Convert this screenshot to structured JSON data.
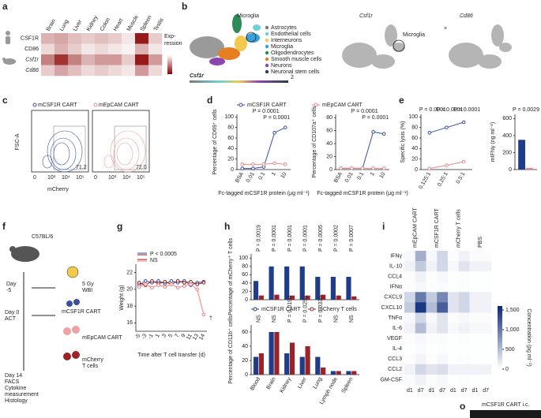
{
  "figure": {
    "letters": [
      "a",
      "b",
      "c",
      "d",
      "e",
      "f",
      "g",
      "h",
      "i",
      "o"
    ],
    "a": {
      "legend": [
        "Exp-",
        "ression"
      ]
    },
    "b": {
      "microglia": "Microglia",
      "gene1": "Csf1r",
      "scale_max": "2",
      "title2": "Csf1r",
      "microglia2": "Microglia",
      "title3": "Cd86",
      "legend": [
        {
          "name": "Astrocytes",
          "color": "#7a7a7a"
        },
        {
          "name": "Endothelial cells",
          "color": "#6fd0d9"
        },
        {
          "name": "Interneurons",
          "color": "#f2c94c"
        },
        {
          "name": "Microglia",
          "color": "#3aa0d8"
        },
        {
          "name": "Oligodendrocytes",
          "color": "#2e8b57"
        },
        {
          "name": "Smooth muscle cells",
          "color": "#e67e22"
        },
        {
          "name": "Neurons",
          "color": "#8e44ad"
        },
        {
          "name": "Neuronal stem cells",
          "color": "#2c3e50"
        }
      ]
    },
    "c": {
      "left_title": "mCSF1R CART",
      "right_title": "mEpCAM CART",
      "y_label": "FSC-A",
      "x_label": "mCherry",
      "left_gate": "71.2",
      "right_gate": "72.0",
      "xticks": [
        "0",
        "10³",
        "10⁴",
        "10⁵"
      ]
    },
    "f": {
      "strain": "C57BL/6",
      "day_m5": "Day",
      "day_m5b": "-5",
      "wbi": [
        "5 Gy",
        "WBI"
      ],
      "cart1": "mCSF1R CART",
      "day0": [
        "Day 0",
        "ACT"
      ],
      "cart2": "mEpCAM CART",
      "cart3": [
        "mCherry",
        "T cells"
      ],
      "day14": [
        "Day 14",
        "FACS",
        "Cytokine",
        "measurement",
        "Histology"
      ]
    },
    "o": {
      "title": "mCSF1R CART i.c."
    }
  },
  "chart_data": [
    {
      "type": "heatmap",
      "categories": [
        "Brain",
        "Lung",
        "Liver",
        "Kidney",
        "Colon",
        "Heart",
        "Muscle",
        "Spleen",
        "Testis"
      ],
      "rows": [
        "CSF1R",
        "CD86",
        "Csf1r",
        "Cd86"
      ],
      "values": [
        [
          0.3,
          0.35,
          0.25,
          0.2,
          0.25,
          0.2,
          0.1,
          0.9,
          0.2
        ],
        [
          0.15,
          0.3,
          0.2,
          0.1,
          0.15,
          0.1,
          0.05,
          0.3,
          0.1
        ],
        [
          0.5,
          0.8,
          0.5,
          0.3,
          0.4,
          0.4,
          0.2,
          0.9,
          0.4
        ],
        [
          0.2,
          0.35,
          0.25,
          0.15,
          0.2,
          0.15,
          0.1,
          0.4,
          0.15
        ]
      ],
      "zlim": [
        0,
        1
      ],
      "cmap": [
        "#ffffff",
        "#8b0000"
      ]
    },
    {
      "type": "line",
      "categories": [
        "BSA",
        "0.01",
        "0.1",
        "1",
        "10"
      ],
      "y_label": "Percentage of CD69⁺ cells",
      "x_label": "Fc-tagged mCSF1R protein (μg ml⁻¹)",
      "ylim": [
        0,
        105
      ],
      "yticks": [
        0,
        20,
        40,
        60,
        80,
        100
      ],
      "series": [
        {
          "name": "mCSF1R CART",
          "color": "#3a4fa0",
          "values": [
            2,
            2,
            5,
            70,
            80
          ]
        },
        {
          "name": "mEpCAM CART",
          "color": "#e88a8a",
          "values": [
            10,
            10,
            10,
            12,
            10
          ]
        }
      ],
      "annotations": [
        "P = 0.0001",
        "P = 0.0001"
      ]
    },
    {
      "type": "line",
      "categories": [
        "BSA",
        "0.01",
        "0.1",
        "1",
        "10"
      ],
      "y_label": "Percentage of CD107a⁺ cells",
      "x_label": "Fc-tagged mCSF1R protein (μg ml⁻¹)",
      "ylim": [
        0,
        85
      ],
      "yticks": [
        0,
        20,
        40,
        60,
        80
      ],
      "series": [
        {
          "color": "#3a4fa0",
          "values": [
            2,
            2,
            2,
            58,
            55
          ]
        },
        {
          "color": "#e88a8a",
          "values": [
            2,
            2,
            2,
            2,
            2
          ]
        }
      ],
      "annotations": [
        "P = 0.0001",
        "P = 0.0001"
      ]
    },
    {
      "type": "line",
      "categories": [
        "0.125:1",
        "0.25:1",
        "0.5:1"
      ],
      "y_label": "Specific lysis (%)",
      "ylim": [
        0,
        105
      ],
      "yticks": [
        0,
        20,
        40,
        60,
        80,
        100
      ],
      "series": [
        {
          "color": "#3a4fa0",
          "values": [
            70,
            80,
            90
          ]
        },
        {
          "color": "#e88a8a",
          "values": [
            2,
            8,
            15
          ]
        }
      ],
      "annotations": [
        "P = 0.0001",
        "P = 0.0001",
        "P = 0.0001"
      ]
    },
    {
      "type": "bar",
      "y_label": "mIFNγ (ng ml⁻¹)",
      "ylim": [
        0,
        650
      ],
      "yticks": [
        0,
        200,
        400,
        600
      ],
      "series": [
        {
          "color": "#1f3c88",
          "values": [
            350
          ]
        },
        {
          "color": "#e88a8a",
          "values": [
            20
          ]
        }
      ],
      "annotations": [
        "P = 0.0029"
      ]
    },
    {
      "type": "line",
      "categories": [
        "-5",
        "-3",
        "-1",
        "1",
        "3",
        "5",
        "7",
        "9",
        "11",
        "13",
        "14"
      ],
      "y_label": "Weight (g)",
      "x_label": "Time after T cell transfer (d)",
      "ylim": [
        15,
        23
      ],
      "yticks": [
        16,
        18,
        20,
        22
      ],
      "series": [
        {
          "color": "#3a4fa0",
          "values": [
            20.5,
            21,
            20.8,
            21,
            20.7,
            21,
            20.8,
            21,
            20.5,
            20.8,
            20.9
          ]
        },
        {
          "color": "#8b1a1a",
          "values": [
            20.8,
            20.5,
            21,
            20.7,
            20.9,
            20.6,
            21,
            20.8,
            20.9,
            20.6,
            20.8
          ]
        },
        {
          "color": "#f08080",
          "values": [
            20.3,
            20.6,
            20.2,
            20.5,
            20.3,
            20.6,
            20.2,
            20.4,
            20.6,
            20,
            17
          ]
        }
      ],
      "annotations": [
        "P < 0.0005",
        "NS",
        "†"
      ]
    },
    {
      "type": "bar",
      "y_label": "Percentage of mCherry⁺ T cells",
      "ylim": [
        0,
        110
      ],
      "yticks": [
        0,
        20,
        40,
        60,
        80,
        100
      ],
      "series": [
        {
          "name": "mCSF1R CART",
          "color": "#1f3c88",
          "values": [
            45,
            80,
            80,
            80,
            55,
            55,
            55
          ]
        },
        {
          "name": "mCherry T cells",
          "color": "#9b2226",
          "values": [
            10,
            12,
            10,
            10,
            12,
            10,
            8
          ]
        }
      ],
      "annotations": [
        "P = 0.0019",
        "P = 0.0001",
        "P = 0.0001",
        "P = 0.0001",
        "P = 0.0005",
        "P = 0.0002",
        "P = 0.0007"
      ]
    },
    {
      "type": "bar",
      "categories": [
        "Blood",
        "Brain",
        "Kidney",
        "Liver",
        "Lung",
        "Lymph node",
        "Spleen"
      ],
      "y_label": "Percentage of CD11b⁺ cells",
      "ylim": [
        0,
        70
      ],
      "yticks": [
        0,
        20,
        40,
        60
      ],
      "series": [
        {
          "color": "#1f3c88",
          "values": [
            25,
            60,
            30,
            25,
            25,
            5,
            5
          ]
        },
        {
          "color": "#9b2226",
          "values": [
            30,
            60,
            45,
            40,
            10,
            5,
            5
          ]
        }
      ],
      "annotations": [
        "NS",
        "NS",
        "P = 0.0196",
        "P = 0.0256",
        "P = 0.0330",
        "NS",
        "NS"
      ]
    },
    {
      "type": "heatmap",
      "categories": [
        "d1",
        "d7",
        "d1",
        "d7",
        "d1",
        "d7",
        "d1",
        "d7"
      ],
      "groups": [
        {
          "name": "mEpCAM CART",
          "color": "#e88a8a"
        },
        {
          "name": "mCSF1R CART",
          "color": "#1f3c88"
        },
        {
          "name": "mCherry T cells",
          "color": "#9b2226"
        },
        {
          "name": "PBS",
          "color": "#444444"
        }
      ],
      "rows": [
        "IFNγ",
        "IL-10",
        "CCL4",
        "IFNα",
        "CXCL9",
        "CXCL10",
        "TNFα",
        "IL-6",
        "VEGF",
        "IL-4",
        "CCL3",
        "CCL2",
        "GM-CSF"
      ],
      "values": [
        [
          50,
          600,
          50,
          300,
          20,
          100,
          20,
          20
        ],
        [
          100,
          400,
          100,
          300,
          50,
          200,
          100,
          100
        ],
        [
          20,
          100,
          20,
          50,
          10,
          20,
          10,
          10
        ],
        [
          20,
          50,
          20,
          30,
          10,
          20,
          10,
          10
        ],
        [
          300,
          1000,
          400,
          900,
          200,
          300,
          100,
          100
        ],
        [
          400,
          1500,
          500,
          1200,
          200,
          300,
          100,
          100
        ],
        [
          50,
          300,
          50,
          200,
          20,
          50,
          20,
          20
        ],
        [
          100,
          500,
          100,
          200,
          50,
          100,
          50,
          50
        ],
        [
          20,
          50,
          20,
          30,
          10,
          20,
          10,
          10
        ],
        [
          10,
          30,
          10,
          20,
          10,
          10,
          10,
          10
        ],
        [
          20,
          80,
          20,
          50,
          10,
          20,
          10,
          10
        ],
        [
          100,
          300,
          200,
          250,
          100,
          100,
          100,
          100
        ],
        [
          30,
          100,
          20,
          50,
          10,
          20,
          10,
          10
        ]
      ],
      "zlim": [
        0,
        1600
      ],
      "cmap": [
        "#ffffff",
        "#0b2a7a"
      ],
      "colorbar_label": "Concentration (pg ml⁻¹)",
      "zticks": [
        0,
        500,
        {
          "value": 1000,
          "label": "1,000"
        },
        {
          "value": 1500,
          "label": "1,500"
        }
      ]
    }
  ]
}
